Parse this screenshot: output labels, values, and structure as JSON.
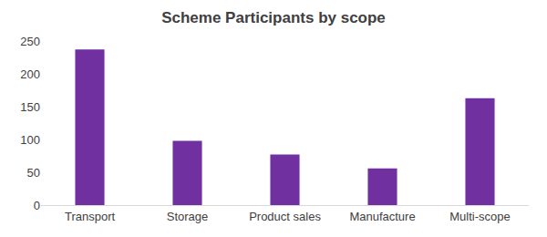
{
  "chart_data": {
    "type": "bar",
    "title": "Scheme Participants by scope",
    "categories": [
      "Transport",
      "Storage",
      "Product sales",
      "Manufacture",
      "Multi-scope"
    ],
    "values": [
      237,
      98,
      77,
      56,
      163
    ],
    "color": "#7030a0",
    "ylim": [
      0,
      250
    ],
    "yticks": [
      0,
      50,
      100,
      150,
      200,
      250
    ],
    "grid": false
  }
}
